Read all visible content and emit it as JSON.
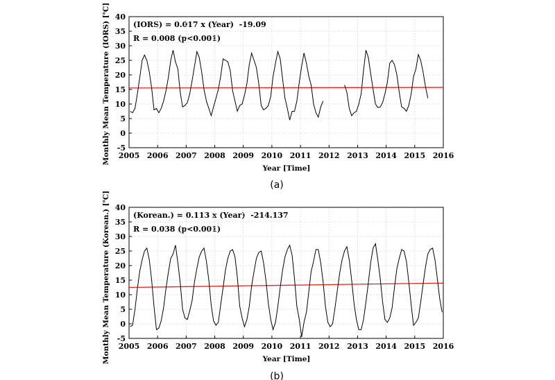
{
  "chart_data": [
    {
      "type": "line",
      "panel_label": "(a)",
      "xlabel": "Year [Time]",
      "ylabel": "Monthly Mean Temperature (IORS) [℃]",
      "xlim": [
        2005,
        2016
      ],
      "ylim": [
        -5,
        40
      ],
      "x_ticks": [
        2005,
        2006,
        2007,
        2008,
        2009,
        2010,
        2011,
        2012,
        2013,
        2014,
        2015,
        2016
      ],
      "y_ticks": [
        -5,
        0,
        5,
        10,
        15,
        20,
        25,
        30,
        35,
        40
      ],
      "grid": true,
      "equation": "(IORS) = 0.017 x (Year)  -19.09",
      "correlation": "R = 0.008 (p<0.001)",
      "trend": {
        "x": [
          2005,
          2016
        ],
        "y": [
          15.5,
          15.7
        ]
      },
      "start_year": 2005,
      "series": [
        {
          "values": [
            7.5,
            7.0,
            8.5,
            13.5,
            19.0,
            25.0,
            26.8,
            25.0,
            21.0,
            15.5,
            8.0,
            8.5,
            7.0,
            8.5,
            11.0,
            14.5,
            19.0,
            25.0,
            28.5,
            24.5,
            22.0,
            14.0,
            9.0,
            9.5,
            10.5,
            13.5,
            18.0,
            23.0,
            28.0,
            26.0,
            21.0,
            15.0,
            11.0,
            8.5,
            6.0,
            9.0,
            12.0,
            15.0,
            19.5,
            25.5,
            25.0,
            24.5,
            21.5,
            14.5,
            11.0,
            7.5,
            9.5,
            10.0,
            13.0,
            17.0,
            23.5,
            27.5,
            25.0,
            22.5,
            17.0,
            9.5,
            8.0,
            8.5,
            9.5,
            12.5,
            19.5,
            24.0,
            28.0,
            25.5,
            18.5,
            12.0,
            8.5,
            4.5,
            7.5,
            7.5,
            11.0,
            17.5,
            23.0,
            27.5,
            24.0,
            19.5,
            16.5,
            10.0,
            7.0,
            5.5,
            9.0,
            11.0,
            null,
            null,
            null,
            null,
            null,
            null,
            null,
            null,
            16.5,
            14.0,
            8.5,
            6.0,
            7.0,
            7.5,
            10.0,
            13.5,
            21.5,
            28.5,
            26.0,
            20.5,
            15.0,
            10.0,
            8.8,
            9.0,
            10.5,
            13.5,
            17.5,
            24.0,
            25.0,
            23.5,
            20.0,
            14.0,
            9.0,
            8.5,
            7.5,
            9.5,
            13.5,
            19.5,
            22.0,
            27.0,
            25.0,
            21.0,
            16.0,
            12.0
          ]
        }
      ]
    },
    {
      "type": "line",
      "panel_label": "(b)",
      "xlabel": "Year [Time]",
      "ylabel": "Monthly Mean Temperature (Korean.) [℃]",
      "xlim": [
        2005,
        2016
      ],
      "ylim": [
        -5,
        40
      ],
      "x_ticks": [
        2005,
        2006,
        2007,
        2008,
        2009,
        2010,
        2011,
        2012,
        2013,
        2014,
        2015,
        2016
      ],
      "y_ticks": [
        -5,
        0,
        5,
        10,
        15,
        20,
        25,
        30,
        35,
        40
      ],
      "grid": true,
      "equation": "(Korean.) = 0.113 x (Year)  -214.137",
      "correlation": "R = 0.038 (p<0.001)",
      "trend": {
        "x": [
          2005,
          2016
        ],
        "y": [
          12.5,
          14.0
        ]
      },
      "start_year": 2005,
      "series": [
        {
          "values": [
            -1.0,
            -0.5,
            5.0,
            12.0,
            18.0,
            22.0,
            25.0,
            26.0,
            22.0,
            15.0,
            6.0,
            -2.0,
            -1.5,
            1.0,
            5.5,
            12.0,
            17.5,
            22.5,
            24.0,
            27.0,
            21.0,
            14.0,
            5.0,
            2.0,
            1.5,
            4.5,
            8.0,
            14.5,
            19.0,
            23.0,
            25.0,
            26.0,
            21.5,
            15.0,
            6.5,
            1.0,
            -0.5,
            0.5,
            6.5,
            12.5,
            18.5,
            22.5,
            25.0,
            25.5,
            23.0,
            16.0,
            6.0,
            2.0,
            -1.0,
            1.5,
            6.0,
            13.0,
            18.0,
            22.5,
            24.5,
            25.0,
            21.0,
            15.0,
            7.0,
            1.5,
            -2.0,
            0.5,
            6.0,
            12.5,
            18.5,
            23.0,
            25.5,
            27.0,
            23.5,
            15.5,
            6.0,
            1.5,
            -4.5,
            0.5,
            4.0,
            11.0,
            18.0,
            21.5,
            25.5,
            25.5,
            21.0,
            14.5,
            6.0,
            0.5,
            -1.0,
            0.0,
            5.5,
            11.5,
            17.5,
            22.0,
            25.0,
            26.5,
            22.0,
            15.0,
            7.0,
            1.5,
            -2.0,
            -2.0,
            1.5,
            7.5,
            14.0,
            21.0,
            26.0,
            27.5,
            22.0,
            15.5,
            7.5,
            1.5,
            0.5,
            2.0,
            5.5,
            12.5,
            19.0,
            22.5,
            25.5,
            25.0,
            21.5,
            14.5,
            6.5,
            -0.5,
            0.5,
            2.0,
            7.5,
            13.5,
            19.5,
            24.0,
            25.5,
            26.0,
            22.0,
            15.5,
            8.5,
            4.0
          ]
        }
      ]
    }
  ]
}
